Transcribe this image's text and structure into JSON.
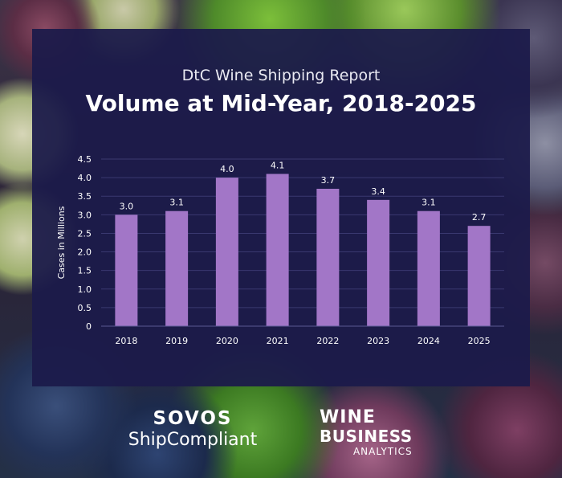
{
  "header": {
    "subtitle": "DtC Wine Shipping Report",
    "title": "Volume at Mid-Year, 2018-2025"
  },
  "colors": {
    "panel": "#1c1b4a",
    "bar": "#a276c7",
    "text": "#ffffff",
    "grid": "#3a3970"
  },
  "chart_data": {
    "type": "bar",
    "title": "Volume at Mid-Year, 2018-2025",
    "subtitle": "DtC Wine Shipping Report",
    "xlabel": "",
    "ylabel": "Cases in Millions",
    "categories": [
      "2018",
      "2019",
      "2020",
      "2021",
      "2022",
      "2023",
      "2024",
      "2025"
    ],
    "values": [
      3.0,
      3.1,
      4.0,
      4.1,
      3.7,
      3.4,
      3.1,
      2.7
    ],
    "value_labels": [
      "3.0",
      "3.1",
      "4.0",
      "4.1",
      "3.7",
      "3.4",
      "3.1",
      "2.7"
    ],
    "yticks": [
      "0",
      "0.5",
      "1.0",
      "1.5",
      "2.0",
      "2.5",
      "3.0",
      "3.5",
      "4.0",
      "4.5"
    ],
    "ylim": [
      0,
      4.5
    ],
    "grid": true,
    "legend": "none"
  },
  "logos": {
    "sovos_line1": "SOVOS",
    "sovos_line2": "ShipCompliant",
    "wba_line1": "WINE",
    "wba_line2": "BUSINESS",
    "wba_line3": "ANALYTICS"
  }
}
